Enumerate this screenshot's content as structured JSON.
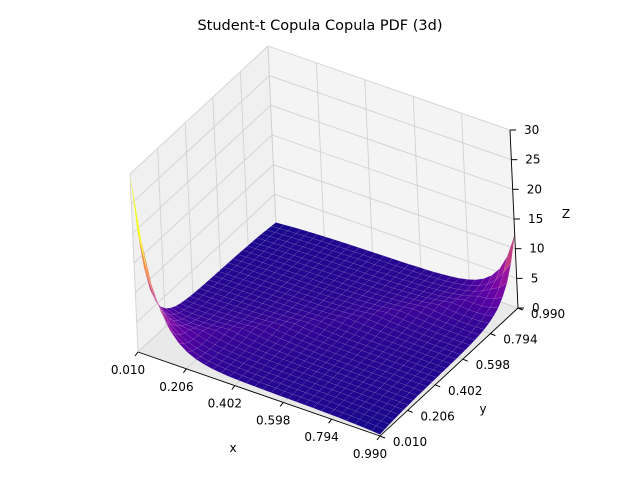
{
  "chart_data": {
    "type": "surface",
    "title": "Student-t Copula Copula PDF (3d)",
    "xlabel": "x",
    "ylabel": "y",
    "zlabel": "Z",
    "xlim": [
      0.01,
      0.99
    ],
    "ylim": [
      0.01,
      0.99
    ],
    "zlim": [
      0,
      30
    ],
    "x_ticks": [
      "0.010",
      "0.206",
      "0.402",
      "0.598",
      "0.794",
      "0.990"
    ],
    "y_ticks": [
      "0.010",
      "0.206",
      "0.402",
      "0.598",
      "0.794",
      "0.990"
    ],
    "z_ticks": [
      "0",
      "5",
      "10",
      "15",
      "20",
      "25",
      "30"
    ],
    "colormap": "plasma",
    "grid": true,
    "surface": {
      "grid_points": 30,
      "min_z": 0.1,
      "max_z": 30,
      "corner_values": {
        "x0_y0": 30,
        "x1_y1": 12,
        "x0_y1": 0.1,
        "x1_y0": 0.1
      },
      "center_value": 1.0
    }
  }
}
